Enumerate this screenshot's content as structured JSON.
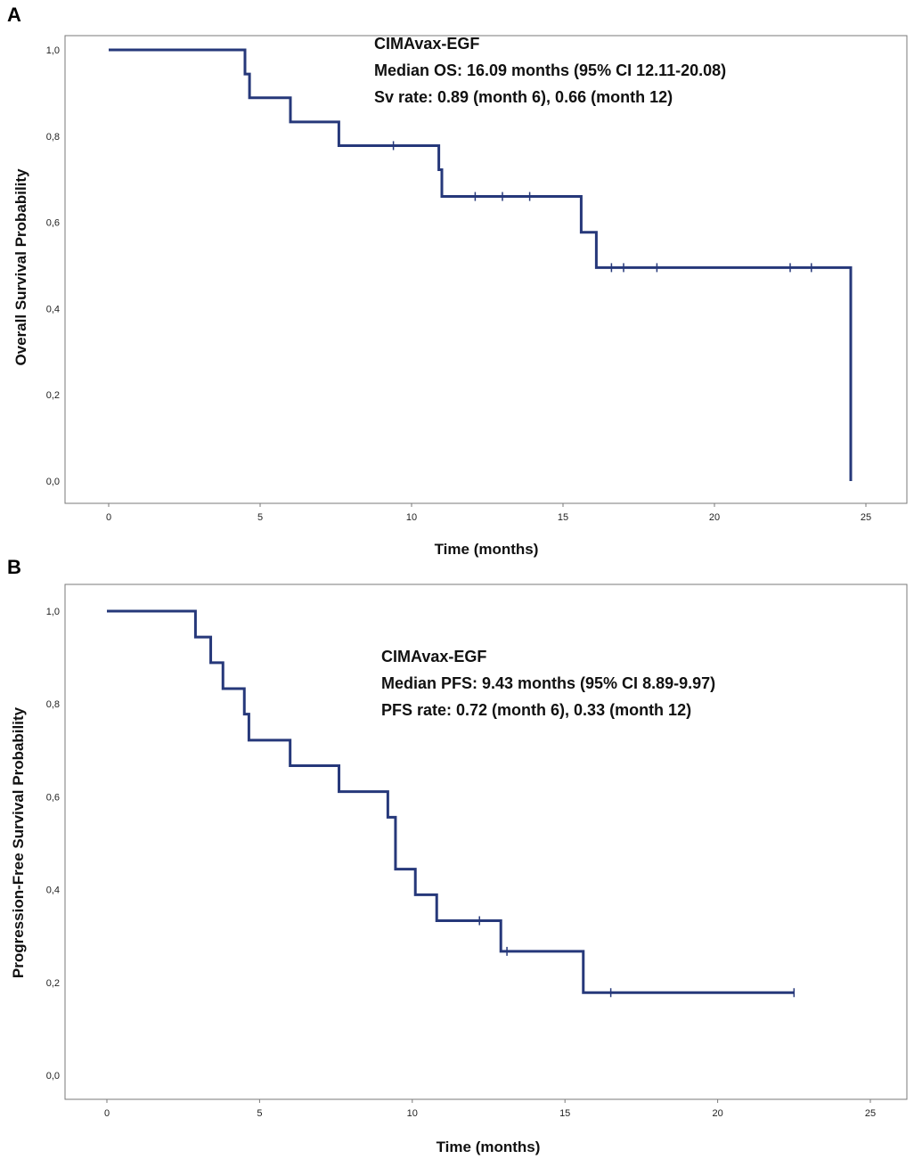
{
  "chart_data": [
    {
      "type": "line",
      "subtype": "kaplan-meier-step",
      "panel_label": "A",
      "xlabel": "Time (months)",
      "ylabel": "Overall Survival Probability",
      "xlim": [
        0,
        25
      ],
      "ylim": [
        0,
        1
      ],
      "x_ticks": [
        "0",
        "5",
        "10",
        "15",
        "20",
        "25"
      ],
      "y_ticks": [
        "0,0",
        "0,2",
        "0,4",
        "0,6",
        "0,8",
        "1,0"
      ],
      "x_tick_values": [
        0,
        5,
        10,
        15,
        20,
        25
      ],
      "y_tick_values": [
        0,
        0.2,
        0.4,
        0.6,
        0.8,
        1.0
      ],
      "grid": false,
      "line_color": "#26387a",
      "annotation": [
        "CIMAvax-EGF",
        "Median OS: 16.09 months (95% CI 12.11-20.08)",
        "Sv rate: 0.89 (month 6), 0.66 (month 12)"
      ],
      "annotation_placement": "top-center",
      "steps": [
        {
          "x": 0,
          "y": 1.0
        },
        {
          "x": 4.5,
          "y": 0.944
        },
        {
          "x": 4.65,
          "y": 0.889
        },
        {
          "x": 6.0,
          "y": 0.833
        },
        {
          "x": 7.6,
          "y": 0.778
        },
        {
          "x": 10.9,
          "y": 0.722
        },
        {
          "x": 11.0,
          "y": 0.66
        },
        {
          "x": 15.6,
          "y": 0.577
        },
        {
          "x": 16.1,
          "y": 0.495
        },
        {
          "x": 24.5,
          "y": 0.0
        }
      ],
      "end_x": 24.5,
      "censored": [
        {
          "x": 9.4,
          "y": 0.778
        },
        {
          "x": 12.1,
          "y": 0.66
        },
        {
          "x": 13.0,
          "y": 0.66
        },
        {
          "x": 13.9,
          "y": 0.66
        },
        {
          "x": 16.6,
          "y": 0.495
        },
        {
          "x": 17.0,
          "y": 0.495
        },
        {
          "x": 18.1,
          "y": 0.495
        },
        {
          "x": 22.5,
          "y": 0.495
        },
        {
          "x": 23.2,
          "y": 0.495
        }
      ]
    },
    {
      "type": "line",
      "subtype": "kaplan-meier-step",
      "panel_label": "B",
      "xlabel": "Time (months)",
      "ylabel": "Progression-Free Survival Probability",
      "xlim": [
        0,
        25
      ],
      "ylim": [
        0,
        1
      ],
      "x_ticks": [
        "0",
        "5",
        "10",
        "15",
        "20",
        "25"
      ],
      "y_ticks": [
        "0,0",
        "0,2",
        "0,4",
        "0,6",
        "0,8",
        "1,0"
      ],
      "x_tick_values": [
        0,
        5,
        10,
        15,
        20,
        25
      ],
      "y_tick_values": [
        0,
        0.2,
        0.4,
        0.6,
        0.8,
        1.0
      ],
      "grid": false,
      "line_color": "#26387a",
      "annotation": [
        "CIMAvax-EGF",
        "Median PFS: 9.43 months (95% CI 8.89-9.97)",
        "PFS rate: 0.72 (month 6), 0.33 (month 12)"
      ],
      "annotation_placement": "top-center",
      "steps": [
        {
          "x": 0,
          "y": 1.0
        },
        {
          "x": 2.9,
          "y": 0.944
        },
        {
          "x": 3.4,
          "y": 0.889
        },
        {
          "x": 3.8,
          "y": 0.833
        },
        {
          "x": 4.5,
          "y": 0.778
        },
        {
          "x": 4.65,
          "y": 0.722
        },
        {
          "x": 6.0,
          "y": 0.667
        },
        {
          "x": 7.6,
          "y": 0.611
        },
        {
          "x": 9.2,
          "y": 0.556
        },
        {
          "x": 9.45,
          "y": 0.444
        },
        {
          "x": 10.1,
          "y": 0.389
        },
        {
          "x": 10.8,
          "y": 0.333
        },
        {
          "x": 12.9,
          "y": 0.267
        },
        {
          "x": 15.6,
          "y": 0.178
        }
      ],
      "end_x": 22.5,
      "censored": [
        {
          "x": 12.2,
          "y": 0.333
        },
        {
          "x": 13.1,
          "y": 0.267
        },
        {
          "x": 16.5,
          "y": 0.178
        },
        {
          "x": 22.5,
          "y": 0.178
        }
      ]
    }
  ]
}
